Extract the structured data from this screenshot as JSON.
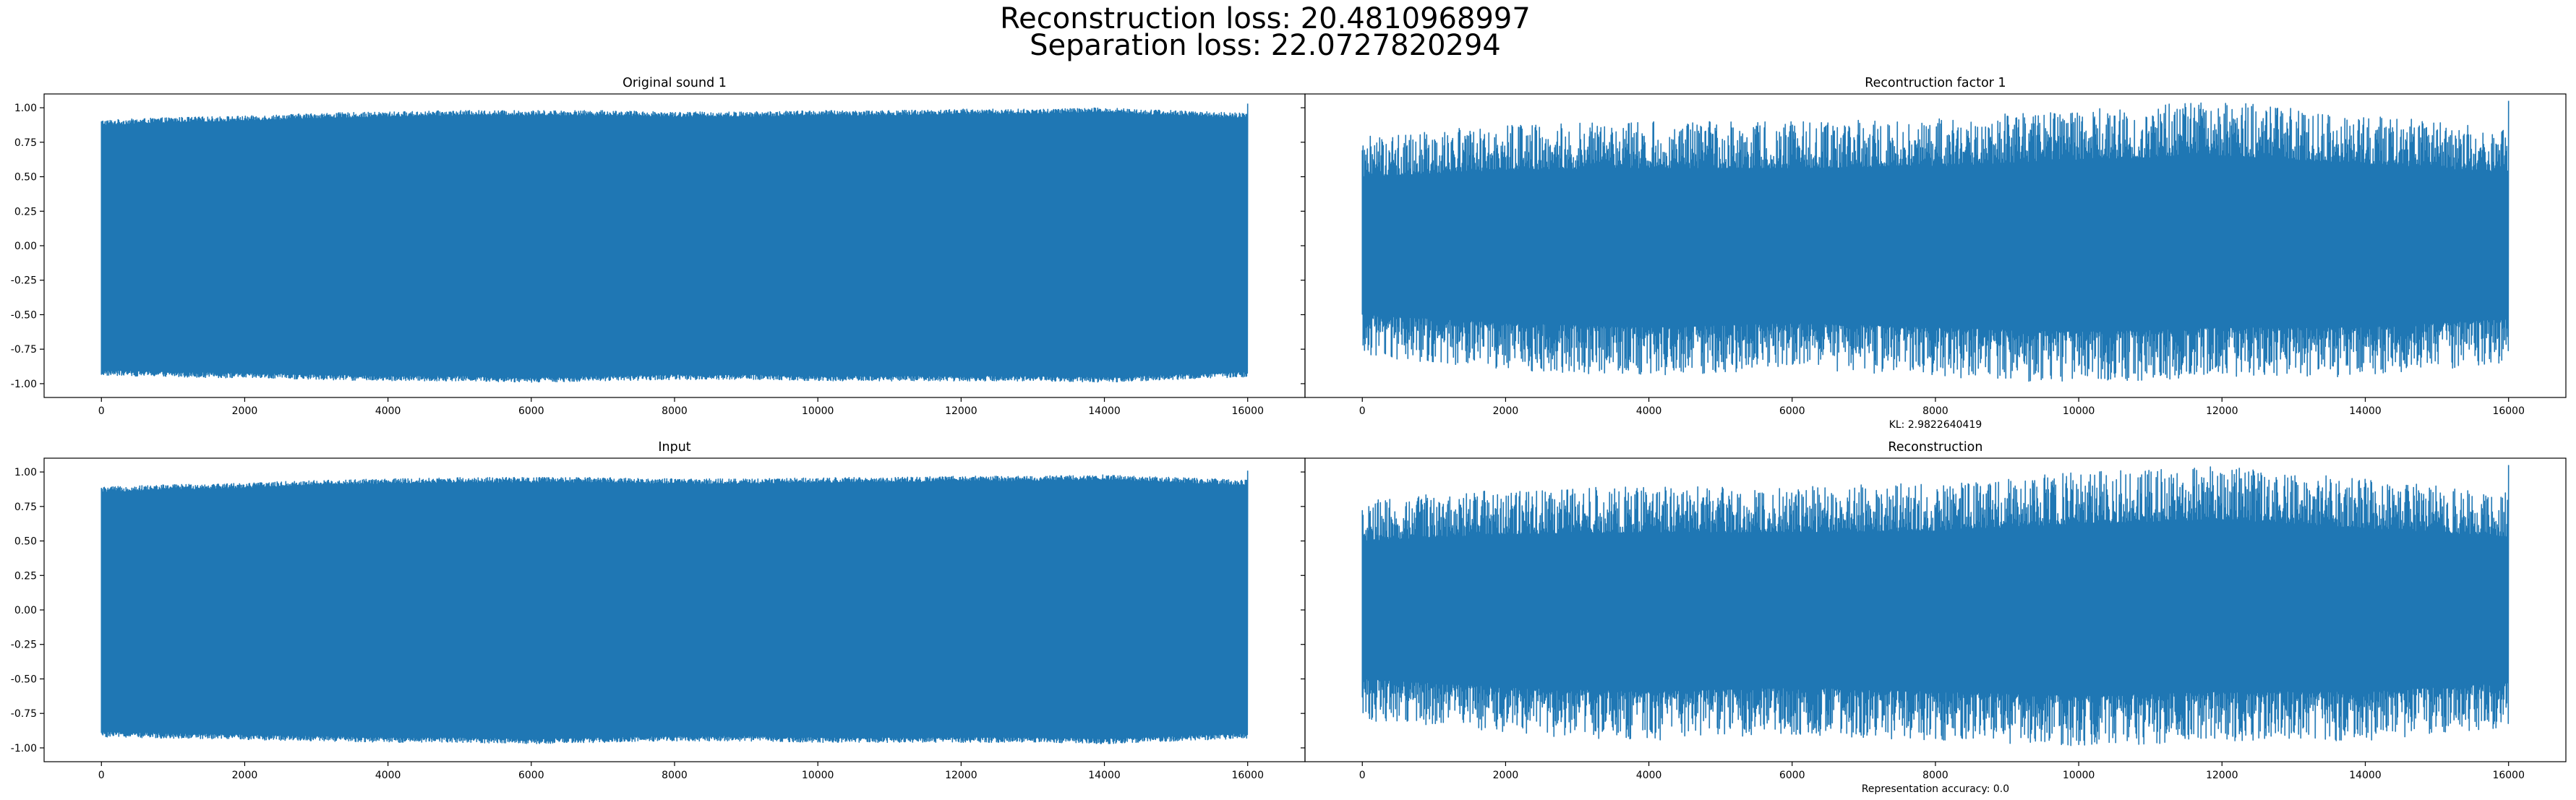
{
  "figure": {
    "title_line1": "Reconstruction loss: 20.4810968997",
    "title_line2": "Separation loss: 22.0727820294"
  },
  "chart_data": [
    {
      "type": "line",
      "title": "Original sound 1",
      "xlabel": "",
      "ylabel": "",
      "note": "",
      "xlim": [
        -800,
        16800
      ],
      "ylim": [
        -1.1,
        1.1
      ],
      "xticks": [
        "0",
        "2000",
        "4000",
        "6000",
        "8000",
        "10000",
        "12000",
        "14000",
        "16000"
      ],
      "yticks": [
        "1.00",
        "0.75",
        "0.50",
        "0.25",
        "0.00",
        "-0.25",
        "-0.50",
        "-0.75",
        "-1.00"
      ],
      "grid": false,
      "color": "#1f77b4",
      "series": [
        {
          "signal": "periodic",
          "n_samples": 16000,
          "x_range": [
            0,
            16000
          ],
          "y_range": [
            -0.97,
            1.03
          ],
          "peak_x": [
            0,
            1000,
            2000,
            3000,
            4000,
            5000,
            6000,
            7000,
            8000,
            9000,
            10000,
            11000,
            12000,
            13000,
            14000,
            15000,
            16000
          ],
          "peak_y": [
            0.89,
            0.91,
            0.92,
            0.94,
            0.95,
            0.96,
            0.96,
            0.96,
            0.95,
            0.95,
            0.96,
            0.96,
            0.97,
            0.97,
            0.98,
            0.96,
            0.94
          ],
          "trough_y": [
            -0.92,
            -0.93,
            -0.94,
            -0.95,
            -0.96,
            -0.96,
            -0.97,
            -0.96,
            -0.95,
            -0.95,
            -0.96,
            -0.96,
            -0.96,
            -0.96,
            -0.97,
            -0.95,
            -0.93
          ]
        }
      ]
    },
    {
      "type": "line",
      "title": "Recontruction factor 1",
      "xlabel": "",
      "ylabel": "",
      "note": "KL: 2.9822640419",
      "xlim": [
        -800,
        16800
      ],
      "ylim": [
        -1.1,
        1.1
      ],
      "xticks": [
        "0",
        "2000",
        "4000",
        "6000",
        "8000",
        "10000",
        "12000",
        "14000",
        "16000"
      ],
      "yticks": [],
      "grid": false,
      "color": "#1f77b4",
      "series": [
        {
          "signal": "noisy",
          "n_samples": 16000,
          "x_range": [
            0,
            16000
          ],
          "y_range": [
            -1.0,
            1.05
          ],
          "peak_x": [
            0,
            2000,
            4000,
            6000,
            8000,
            10000,
            12000,
            14000,
            16000
          ],
          "peak_y": [
            0.8,
            0.88,
            0.9,
            0.9,
            0.92,
            1.0,
            1.05,
            0.95,
            0.85
          ],
          "trough_y": [
            -0.8,
            -0.9,
            -0.95,
            -0.9,
            -0.95,
            -1.0,
            -0.95,
            -0.95,
            -0.85
          ]
        }
      ]
    },
    {
      "type": "line",
      "title": "Input",
      "xlabel": "",
      "ylabel": "",
      "note": "",
      "xlim": [
        -800,
        16800
      ],
      "ylim": [
        -1.1,
        1.1
      ],
      "xticks": [
        "0",
        "2000",
        "4000",
        "6000",
        "8000",
        "10000",
        "12000",
        "14000",
        "16000"
      ],
      "yticks": [
        "1.00",
        "0.75",
        "0.50",
        "0.25",
        "0.00",
        "-0.25",
        "-0.50",
        "-0.75",
        "-1.00"
      ],
      "grid": false,
      "color": "#1f77b4",
      "series": [
        {
          "signal": "periodic",
          "n_samples": 16000,
          "x_range": [
            0,
            16000
          ],
          "y_range": [
            -0.95,
            1.01
          ],
          "peak_x": [
            0,
            1000,
            2000,
            3000,
            4000,
            5000,
            6000,
            7000,
            8000,
            9000,
            10000,
            11000,
            12000,
            13000,
            14000,
            15000,
            16000
          ],
          "peak_y": [
            0.87,
            0.89,
            0.9,
            0.92,
            0.93,
            0.94,
            0.94,
            0.94,
            0.93,
            0.93,
            0.94,
            0.94,
            0.95,
            0.95,
            0.96,
            0.94,
            0.92
          ],
          "trough_y": [
            -0.9,
            -0.91,
            -0.92,
            -0.93,
            -0.94,
            -0.94,
            -0.95,
            -0.94,
            -0.93,
            -0.93,
            -0.94,
            -0.94,
            -0.94,
            -0.94,
            -0.95,
            -0.93,
            -0.91
          ]
        }
      ]
    },
    {
      "type": "line",
      "title": "Reconstruction",
      "xlabel": "",
      "ylabel": "",
      "note": "Representation accuracy: 0.0",
      "xlim": [
        -800,
        16800
      ],
      "ylim": [
        -1.1,
        1.1
      ],
      "xticks": [
        "0",
        "2000",
        "4000",
        "6000",
        "8000",
        "10000",
        "12000",
        "14000",
        "16000"
      ],
      "yticks": [],
      "grid": false,
      "color": "#1f77b4",
      "series": [
        {
          "signal": "noisy",
          "n_samples": 16000,
          "x_range": [
            0,
            16000
          ],
          "y_range": [
            -1.0,
            1.05
          ],
          "peak_x": [
            0,
            2000,
            4000,
            6000,
            8000,
            10000,
            12000,
            14000,
            16000
          ],
          "peak_y": [
            0.8,
            0.88,
            0.9,
            0.9,
            0.92,
            1.0,
            1.05,
            0.95,
            0.85
          ],
          "trough_y": [
            -0.8,
            -0.9,
            -0.95,
            -0.9,
            -0.95,
            -1.0,
            -0.95,
            -0.95,
            -0.85
          ]
        }
      ]
    }
  ]
}
